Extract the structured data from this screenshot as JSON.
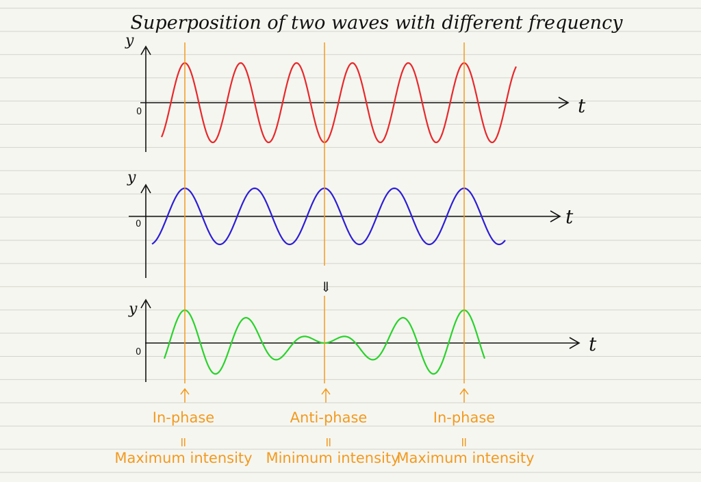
{
  "title": "Superposition of two waves with different frequency",
  "panels": [
    {
      "wave": "wave-1",
      "color": "#e8282a",
      "y_label": "y",
      "x_label": "t",
      "origin_label": "0",
      "frequency_ratio": 5,
      "amplitude": 1
    },
    {
      "wave": "wave-2",
      "color": "#2d1ed6",
      "y_label": "y",
      "x_label": "t",
      "origin_label": "0",
      "frequency_ratio": 4,
      "amplitude": 1
    },
    {
      "wave": "resultant",
      "color": "#28d32a",
      "y_label": "y",
      "x_label": "t",
      "origin_label": "0"
    }
  ],
  "sum_arrow": "⇓",
  "markers": [
    {
      "phase_label": "In-phase",
      "equals": "=",
      "intensity_label": "Maximum intensity"
    },
    {
      "phase_label": "Anti-phase",
      "equals": "=",
      "intensity_label": "Minimum intensity"
    },
    {
      "phase_label": "In-phase",
      "equals": "=",
      "intensity_label": "Maximum intensity"
    }
  ],
  "colors": {
    "background": "#f6f6f1",
    "ruled_line": "#d3d3cc",
    "axis": "#111111",
    "marker": "#f29a1e"
  }
}
